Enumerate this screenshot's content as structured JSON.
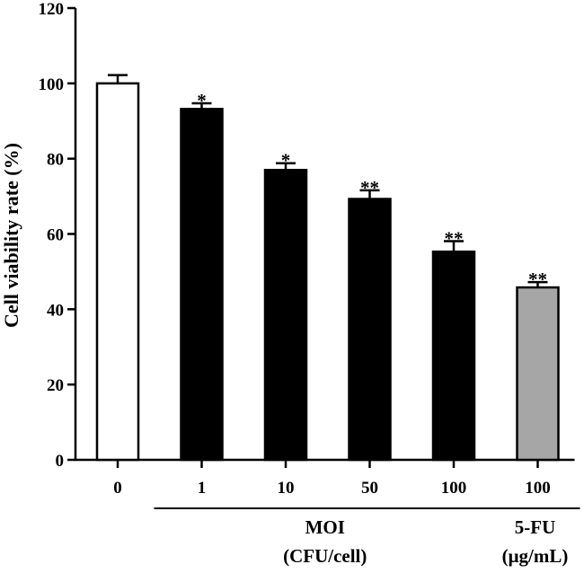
{
  "chart_data": {
    "type": "bar",
    "title": "",
    "xlabel": "",
    "ylabel": "Cell viability rate (%)",
    "ylim": [
      0,
      120
    ],
    "yticks": [
      0,
      20,
      40,
      60,
      80,
      100,
      120
    ],
    "grid": false,
    "categories": [
      "0",
      "1",
      "10",
      "50",
      "100",
      "100"
    ],
    "values": [
      100,
      93.2,
      77.0,
      69.3,
      55.3,
      45.8
    ],
    "errors": [
      2.2,
      1.5,
      1.8,
      2.3,
      2.8,
      1.4
    ],
    "significance": [
      "",
      "*",
      "*",
      "**",
      "**",
      "**"
    ],
    "fills": [
      "#ffffff",
      "#000000",
      "#000000",
      "#000000",
      "#000000",
      "#a6a6a6"
    ],
    "groups": [
      {
        "label_line1": "MOI",
        "label_line2": "(CFU/cell)",
        "from": 1,
        "to": 4
      },
      {
        "label_line1": "5-FU",
        "label_line2": "(μg/mL)",
        "from": 5,
        "to": 5
      }
    ]
  }
}
